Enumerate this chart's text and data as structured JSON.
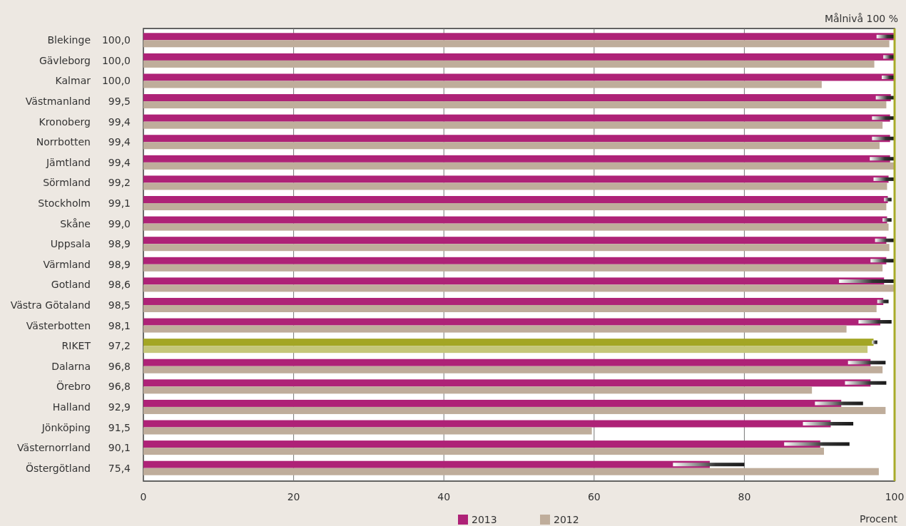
{
  "chart_data": {
    "type": "bar",
    "orientation": "horizontal",
    "categories": [
      "Blekinge",
      "Gävleborg",
      "Kalmar",
      "Västmanland",
      "Kronoberg",
      "Norrbotten",
      "Jämtland",
      "Sörmland",
      "Stockholm",
      "Skåne",
      "Uppsala",
      "Värmland",
      "Gotland",
      "Västra Götaland",
      "Västerbotten",
      "RIKET",
      "Dalarna",
      "Örebro",
      "Halland",
      "Jönköping",
      "Västernorrland",
      "Östergötland"
    ],
    "series": [
      {
        "name": "2013",
        "color": "#ae2277",
        "colors": [
          "#ae2277",
          "#ae2277",
          "#ae2277",
          "#ae2277",
          "#ae2277",
          "#ae2277",
          "#ae2277",
          "#ae2277",
          "#ae2277",
          "#ae2277",
          "#ae2277",
          "#ae2277",
          "#ae2277",
          "#ae2277",
          "#ae2277",
          "#a3a624",
          "#ae2277",
          "#ae2277",
          "#ae2277",
          "#ae2277",
          "#ae2277",
          "#ae2277"
        ],
        "values": [
          100.0,
          100.0,
          100.0,
          99.5,
          99.4,
          99.4,
          99.4,
          99.2,
          99.1,
          99.0,
          98.9,
          98.9,
          98.6,
          98.5,
          98.1,
          97.2,
          96.8,
          96.8,
          92.9,
          91.5,
          90.1,
          75.4
        ],
        "value_labels": [
          "100,0",
          "100,0",
          "100,0",
          "99,5",
          "99,4",
          "99,4",
          "99,4",
          "99,2",
          "99,1",
          "99,0",
          "98,9",
          "98,9",
          "98,6",
          "98,5",
          "98,1",
          "97,2",
          "96,8",
          "96,8",
          "92,9",
          "91,5",
          "90,1",
          "75,4"
        ],
        "errors": [
          [
            97.6,
            100
          ],
          [
            98.5,
            100
          ],
          [
            98.3,
            100
          ],
          [
            97.5,
            100
          ],
          [
            97.0,
            100
          ],
          [
            97.0,
            100
          ],
          [
            96.7,
            100
          ],
          [
            97.2,
            100
          ],
          [
            98.6,
            99.6
          ],
          [
            98.4,
            99.6
          ],
          [
            97.4,
            99.9
          ],
          [
            96.8,
            99.9
          ],
          [
            92.6,
            100
          ],
          [
            97.7,
            99.2
          ],
          [
            95.2,
            99.6
          ],
          [
            97.0,
            97.7
          ],
          [
            93.8,
            98.8
          ],
          [
            93.4,
            98.9
          ],
          [
            89.4,
            95.8
          ],
          [
            87.8,
            94.5
          ],
          [
            85.3,
            94.0
          ],
          [
            70.5,
            80.0
          ]
        ]
      },
      {
        "name": "2012",
        "color": "#bfad9b",
        "colors": [
          "#bfad9b",
          "#bfad9b",
          "#bfad9b",
          "#bfad9b",
          "#bfad9b",
          "#bfad9b",
          "#bfad9b",
          "#bfad9b",
          "#bfad9b",
          "#bfad9b",
          "#bfad9b",
          "#bfad9b",
          "#bfad9b",
          "#bfad9b",
          "#bfad9b",
          "#c5c77a",
          "#bfad9b",
          "#bfad9b",
          "#bfad9b",
          "#bfad9b",
          "#bfad9b",
          "#bfad9b"
        ],
        "values": [
          99.3,
          97.3,
          90.3,
          98.9,
          98.4,
          98.0,
          100,
          99.0,
          98.9,
          99.2,
          99.3,
          98.4,
          100,
          97.6,
          93.6,
          96.4,
          98.4,
          89.0,
          98.8,
          59.7,
          90.6,
          97.9
        ]
      }
    ],
    "xlim": [
      0,
      100
    ],
    "xticks": [
      0,
      20,
      40,
      60,
      80,
      100
    ],
    "xlabel": "Procent",
    "grid": "x",
    "legend": "bottom",
    "ref_lines": [
      {
        "axis": "x",
        "value": 100,
        "label": "Målnivå 100 %",
        "color": "#a8ab2a"
      }
    ]
  }
}
